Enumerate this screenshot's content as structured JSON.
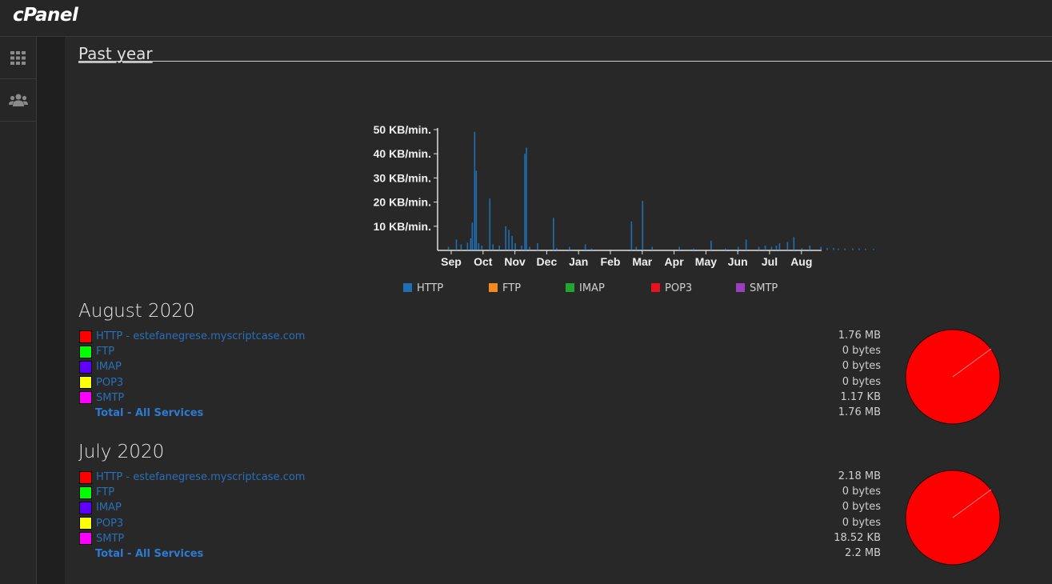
{
  "app": {
    "logo": "cPanel"
  },
  "sidebar": {
    "items": [
      {
        "icon": "grid-icon"
      },
      {
        "icon": "users-icon"
      }
    ]
  },
  "section": {
    "title": "Past year"
  },
  "chart_data": {
    "type": "bar",
    "ylabels": [
      "50 KB/min.",
      "40 KB/min.",
      "30 KB/min.",
      "20 KB/min.",
      "10 KB/min."
    ],
    "ylim": [
      0,
      50
    ],
    "categories": [
      "Sep",
      "Oct",
      "Nov",
      "Dec",
      "Jan",
      "Feb",
      "Mar",
      "Apr",
      "May",
      "Jun",
      "Jul",
      "Aug"
    ],
    "series": [
      {
        "name": "HTTP",
        "color": "#1f6fb2",
        "points": [
          [
            0.8,
            1.5
          ],
          [
            1.3,
            4.5
          ],
          [
            1.6,
            2.5
          ],
          [
            2.0,
            3.2
          ],
          [
            2.2,
            5
          ],
          [
            2.3,
            11.5
          ],
          [
            2.45,
            49
          ],
          [
            2.55,
            33
          ],
          [
            2.7,
            3
          ],
          [
            2.9,
            2
          ],
          [
            3.4,
            21.5
          ],
          [
            3.6,
            2.5
          ],
          [
            4.0,
            2
          ],
          [
            4.4,
            10
          ],
          [
            4.6,
            8.5
          ],
          [
            4.8,
            6
          ],
          [
            5.0,
            3
          ],
          [
            5.4,
            2
          ],
          [
            5.6,
            40
          ],
          [
            5.7,
            42.5
          ],
          [
            5.9,
            1.5
          ],
          [
            6.4,
            3
          ],
          [
            7.4,
            13.5
          ],
          [
            7.6,
            1
          ],
          [
            8.4,
            1.5
          ],
          [
            9.4,
            2.5
          ],
          [
            9.8,
            0.8
          ],
          [
            12.3,
            12
          ],
          [
            12.6,
            1.5
          ],
          [
            13.0,
            20.5
          ],
          [
            13.6,
            1.5
          ],
          [
            15.3,
            1.5
          ],
          [
            16.2,
            0.8
          ],
          [
            17.3,
            4
          ],
          [
            18.2,
            0.8
          ],
          [
            19.0,
            1.5
          ],
          [
            19.5,
            4.5
          ],
          [
            20.3,
            1.5
          ],
          [
            20.7,
            2
          ],
          [
            21.1,
            1.5
          ],
          [
            21.4,
            2
          ],
          [
            21.6,
            3
          ],
          [
            22.1,
            3.5
          ],
          [
            22.5,
            5.5
          ],
          [
            23.0,
            1
          ],
          [
            23.5,
            2
          ],
          [
            24.2,
            1.5
          ],
          [
            24.6,
            1
          ],
          [
            25.0,
            1
          ],
          [
            25.3,
            0.8
          ],
          [
            25.7,
            0.8
          ],
          [
            26.2,
            0.8
          ],
          [
            26.6,
            0.8
          ],
          [
            27.0,
            0.7
          ],
          [
            27.5,
            0.6
          ]
        ]
      },
      {
        "name": "FTP",
        "color": "#f28a1f"
      },
      {
        "name": "IMAP",
        "color": "#21a631"
      },
      {
        "name": "POP3",
        "color": "#e8111f"
      },
      {
        "name": "SMTP",
        "color": "#9b3fc0"
      }
    ]
  },
  "months": [
    {
      "title": "August 2020",
      "services": [
        {
          "label": "HTTP - estefanegrese.myscriptcase.com",
          "value": "1.76 MB",
          "color": "#ff0000"
        },
        {
          "label": "FTP",
          "value": "0 bytes",
          "color": "#00ff00"
        },
        {
          "label": "IMAP",
          "value": "0 bytes",
          "color": "#6000ff"
        },
        {
          "label": "POP3",
          "value": "0 bytes",
          "color": "#ffff00"
        },
        {
          "label": "SMTP",
          "value": "1.17 KB",
          "color": "#ff00ff"
        }
      ],
      "total_label": "Total - All Services",
      "total_value": "1.76 MB"
    },
    {
      "title": "July 2020",
      "services": [
        {
          "label": "HTTP - estefanegrese.myscriptcase.com",
          "value": "2.18 MB",
          "color": "#ff0000"
        },
        {
          "label": "FTP",
          "value": "0 bytes",
          "color": "#00ff00"
        },
        {
          "label": "IMAP",
          "value": "0 bytes",
          "color": "#6000ff"
        },
        {
          "label": "POP3",
          "value": "0 bytes",
          "color": "#ffff00"
        },
        {
          "label": "SMTP",
          "value": "18.52 KB",
          "color": "#ff00ff"
        }
      ],
      "total_label": "Total - All Services",
      "total_value": "2.2 MB"
    }
  ]
}
